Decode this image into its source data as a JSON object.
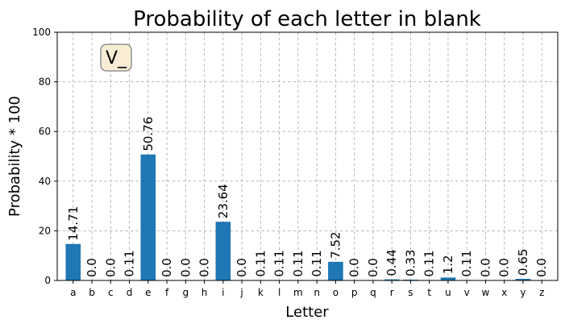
{
  "chart_data": {
    "type": "bar",
    "title": "Probability of each letter in blank",
    "xlabel": "Letter",
    "ylabel": "Probability * 100",
    "categories": [
      "a",
      "b",
      "c",
      "d",
      "e",
      "f",
      "g",
      "h",
      "i",
      "j",
      "k",
      "l",
      "m",
      "n",
      "o",
      "p",
      "q",
      "r",
      "s",
      "t",
      "u",
      "v",
      "w",
      "x",
      "y",
      "z"
    ],
    "values": [
      14.71,
      0.0,
      0.0,
      0.11,
      50.76,
      0.0,
      0.0,
      0.0,
      23.64,
      0.0,
      0.11,
      0.11,
      0.11,
      0.11,
      7.52,
      0.0,
      0.0,
      0.44,
      0.33,
      0.11,
      1.2,
      0.11,
      0.0,
      0.0,
      0.65,
      0.0
    ],
    "value_labels": [
      "14.71",
      "0.0",
      "0.0",
      "0.11",
      "50.76",
      "0.0",
      "0.0",
      "0.0",
      "23.64",
      "0.0",
      "0.11",
      "0.11",
      "0.11",
      "0.11",
      "7.52",
      "0.0",
      "0.0",
      "0.44",
      "0.33",
      "0.11",
      "1.2",
      "0.11",
      "0.0",
      "0.0",
      "0.65",
      "0.0"
    ],
    "ylim": [
      0,
      100
    ],
    "yticks": [
      0,
      20,
      40,
      60,
      80,
      100
    ],
    "grid": true,
    "bar_color": "#1f77b4",
    "annotation": {
      "text": "V_",
      "box_fill": "#f8ecd4",
      "box_stroke": "#7f7f7f"
    }
  }
}
